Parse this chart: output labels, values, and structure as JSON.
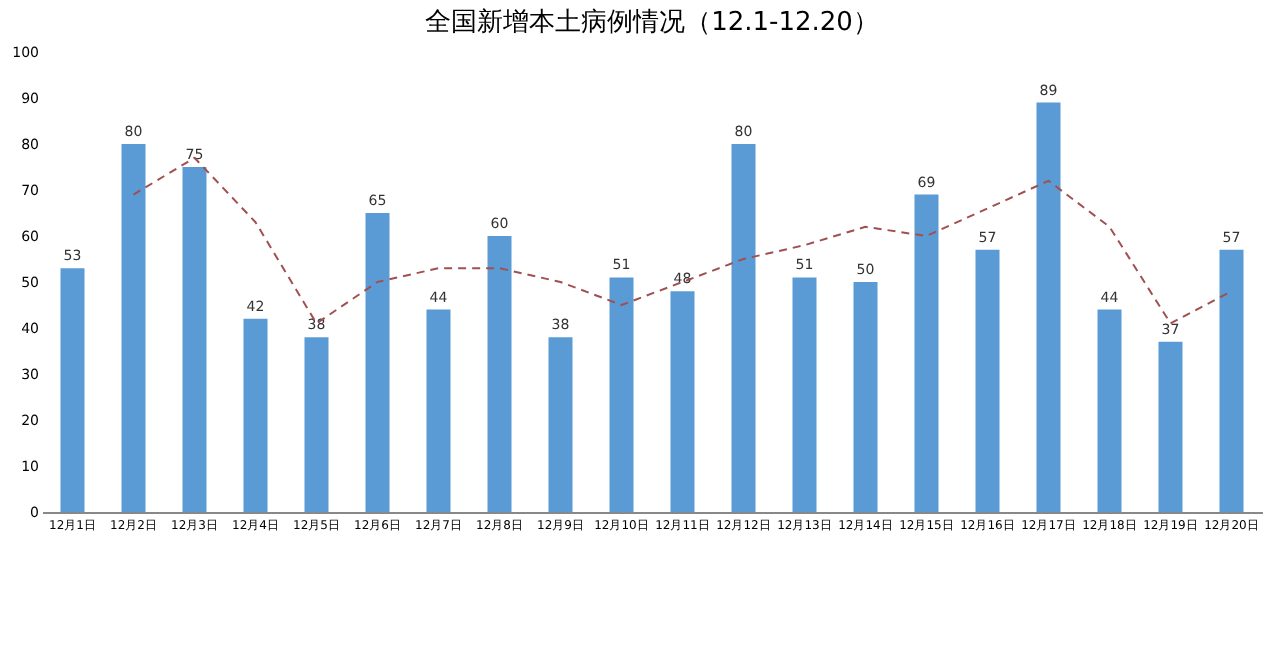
{
  "chart_data": {
    "type": "bar",
    "title": "全国新增本土病例情况（12.1-12.20）",
    "categories": [
      "12月1日",
      "12月2日",
      "12月3日",
      "12月4日",
      "12月5日",
      "12月6日",
      "12月7日",
      "12月8日",
      "12月9日",
      "12月10日",
      "12月11日",
      "12月12日",
      "12月13日",
      "12月14日",
      "12月15日",
      "12月16日",
      "12月17日",
      "12月18日",
      "12月19日",
      "12月20日"
    ],
    "series": [
      {
        "color": "#5b9bd5",
        "values": [
          53,
          80,
          75,
          42,
          38,
          65,
          44,
          60,
          38,
          51,
          48,
          80,
          51,
          50,
          69,
          57,
          89,
          44,
          37,
          57
        ],
        "value_labels": [
          "53",
          "80",
          "75",
          "42",
          "38",
          "65",
          "44",
          "60",
          "38",
          "51",
          "48",
          "80",
          "51",
          "50",
          "69",
          "57",
          "89",
          "44",
          "37",
          "57"
        ]
      },
      {
        "type": "line",
        "color": "#a05050",
        "line_style": "dashed",
        "values": [
          null,
          69,
          77,
          63,
          41,
          50,
          53,
          53,
          50,
          45,
          50,
          55,
          58,
          62,
          60,
          66,
          72,
          62,
          41,
          48
        ]
      }
    ],
    "ylim": [
      0,
      100
    ],
    "yticks": [
      0,
      10,
      20,
      30,
      40,
      50,
      60,
      70,
      80,
      90,
      100
    ],
    "grid": false
  }
}
